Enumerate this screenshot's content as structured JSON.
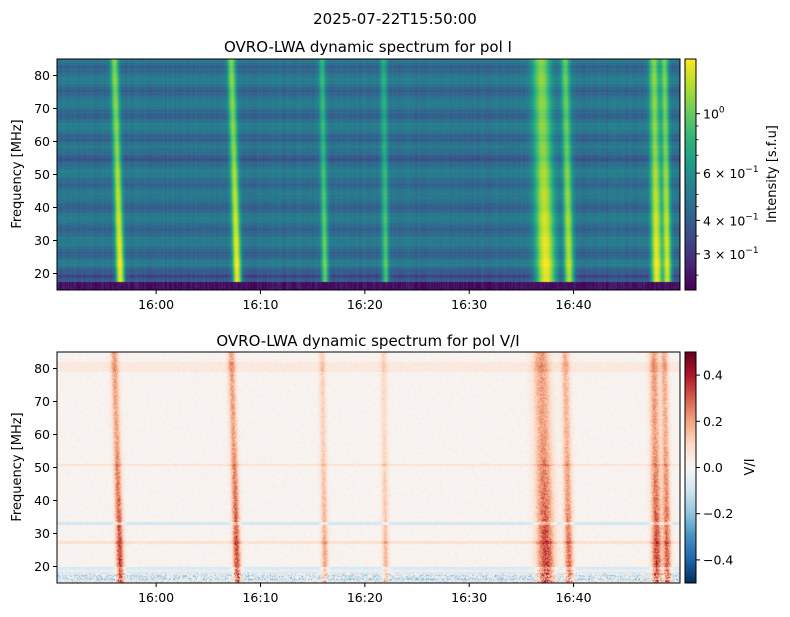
{
  "figure": {
    "suptitle": "2025-07-22T15:50:00"
  },
  "chart_data": [
    {
      "type": "heatmap",
      "title": "OVRO-LWA dynamic spectrum for pol I",
      "ylabel": "Frequency [MHz]",
      "xlabel": "",
      "x_ticks": [
        "16:00",
        "16:10",
        "16:20",
        "16:30",
        "16:40"
      ],
      "x_tick_minutes": [
        600,
        610,
        620,
        630,
        640
      ],
      "xlim_minutes": [
        590.5,
        650.2
      ],
      "y_ticks": [
        20,
        30,
        40,
        50,
        60,
        70,
        80
      ],
      "ylim": [
        15,
        85
      ],
      "colormap": "viridis",
      "color_scale": "log",
      "colorbar": {
        "label": "Intensity [s.f.u]",
        "range": [
          0.22,
          1.6
        ],
        "ticks": [
          {
            "value": 1.0,
            "base": "10",
            "exp": "0"
          },
          {
            "value": 0.6,
            "base": "6 × 10",
            "exp": "−1"
          },
          {
            "value": 0.4,
            "base": "4 × 10",
            "exp": "−1"
          },
          {
            "value": 0.3,
            "base": "3 × 10",
            "exp": "−1"
          }
        ]
      },
      "bursts": [
        {
          "t": 596.6,
          "width": 0.35,
          "drift": 0.6,
          "peak": 1.0
        },
        {
          "t": 607.8,
          "width": 0.35,
          "drift": 0.6,
          "peak": 1.0
        },
        {
          "t": 616.2,
          "width": 0.3,
          "drift": 0.3,
          "peak": 0.55
        },
        {
          "t": 622.0,
          "width": 0.3,
          "drift": 0.2,
          "peak": 0.45
        },
        {
          "t": 637.4,
          "width": 0.8,
          "drift": 0.5,
          "peak": 1.0
        },
        {
          "t": 639.6,
          "width": 0.4,
          "drift": 0.4,
          "peak": 0.8
        },
        {
          "t": 648.0,
          "width": 0.45,
          "drift": 0.3,
          "peak": 1.0
        },
        {
          "t": 649.0,
          "width": 0.35,
          "drift": 0.3,
          "peak": 0.9
        }
      ]
    },
    {
      "type": "heatmap",
      "title": "OVRO-LWA dynamic spectrum for pol V/I",
      "ylabel": "Frequency [MHz]",
      "xlabel": "",
      "x_ticks": [
        "16:00",
        "16:10",
        "16:20",
        "16:30",
        "16:40"
      ],
      "x_tick_minutes": [
        600,
        610,
        620,
        630,
        640
      ],
      "xlim_minutes": [
        590.5,
        650.2
      ],
      "y_ticks": [
        20,
        30,
        40,
        50,
        60,
        70,
        80
      ],
      "ylim": [
        15,
        85
      ],
      "colormap": "RdBu_r",
      "color_scale": "linear",
      "colorbar": {
        "label": "V/I",
        "range": [
          -0.5,
          0.5
        ],
        "ticks": [
          {
            "value": 0.4,
            "label": "0.4"
          },
          {
            "value": 0.2,
            "label": "0.2"
          },
          {
            "value": 0.0,
            "label": "0.0"
          },
          {
            "value": -0.2,
            "label": "−0.2"
          },
          {
            "value": -0.4,
            "label": "−0.4"
          }
        ]
      }
    }
  ]
}
